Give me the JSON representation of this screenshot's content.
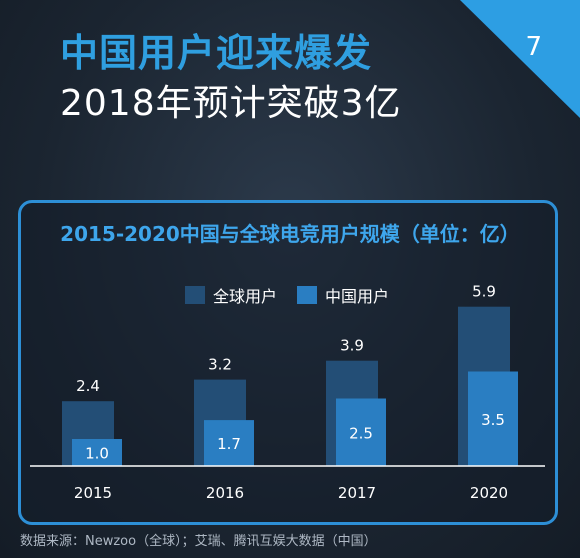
{
  "header": {
    "title_line1": "中国用户迎来爆发",
    "title_line2": "2018年预计突破3亿",
    "page_number": "7"
  },
  "colors": {
    "global": "#234e76",
    "china": "#2a7ec2",
    "accent": "#2f9fe0"
  },
  "chart_data": {
    "type": "bar",
    "title": "2015-2020中国与全球电竞用户规模（单位：亿）",
    "categories": [
      "2015",
      "2016",
      "2017",
      "2020"
    ],
    "series": [
      {
        "name": "全球用户",
        "values": [
          2.4,
          3.2,
          3.9,
          5.9
        ],
        "labels": [
          "2.4",
          "3.2",
          "3.9",
          "5.9"
        ]
      },
      {
        "name": "中国用户",
        "values": [
          1.0,
          1.7,
          2.5,
          3.5
        ],
        "labels": [
          "1.0",
          "1.7",
          "2.5",
          "3.5"
        ]
      }
    ]
  },
  "source": "数据来源：Newzoo（全球）；艾瑞、腾讯互娱大数据（中国）"
}
